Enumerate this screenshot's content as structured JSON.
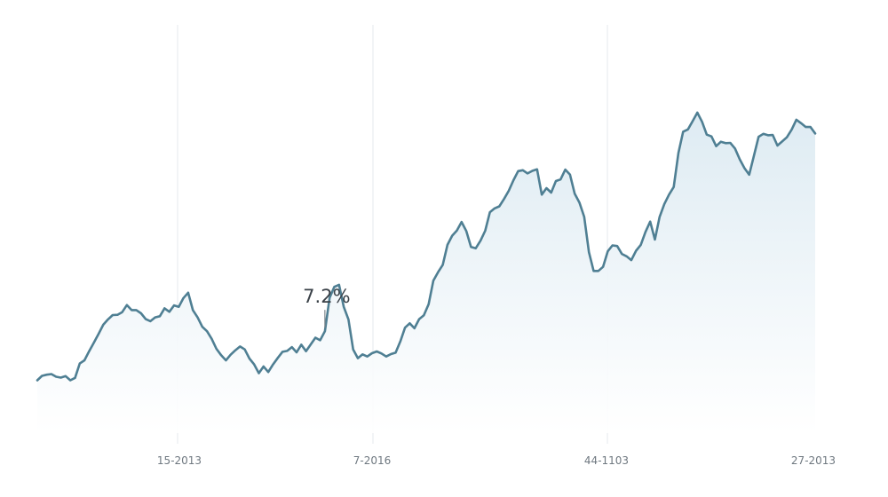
{
  "chart_data": {
    "type": "area",
    "title": "",
    "xlabel": "",
    "ylabel": "",
    "x_tick_labels": [
      "15-2013",
      "7-2016",
      "44-1103",
      "27-2013"
    ],
    "grid": "vertical",
    "legend": "none",
    "colors": {
      "line": "#4f7f93",
      "fill_top": "#dceaf2",
      "fill_bottom": "#ffffff",
      "grid": "#e6e9ec"
    },
    "ylim": [
      0,
      100
    ],
    "annotation": {
      "label": "7.2%",
      "index": 61
    },
    "series": [
      {
        "values": [
          5.6,
          7.1,
          7.5,
          7.7,
          6.8,
          6.5,
          7.0,
          5.6,
          6.4,
          11.3,
          12.4,
          15.5,
          18.4,
          21.4,
          24.5,
          26.3,
          27.8,
          27.9,
          28.8,
          31.2,
          29.5,
          29.5,
          28.4,
          26.4,
          25.7,
          27.0,
          27.4,
          30.1,
          28.9,
          31.1,
          30.6,
          33.6,
          35.4,
          29.5,
          27.0,
          23.8,
          22.3,
          19.7,
          16.3,
          14.1,
          12.4,
          14.3,
          15.8,
          17.1,
          16.1,
          13.0,
          11.0,
          8.0,
          10.3,
          8.4,
          11.0,
          13.2,
          15.3,
          15.6,
          16.9,
          15.1,
          17.7,
          15.5,
          17.8,
          20.1,
          19.2,
          22.3,
          33.7,
          37.4,
          38.1,
          30.6,
          26.3,
          16.1,
          13.1,
          14.4,
          13.7,
          14.8,
          15.4,
          14.7,
          13.7,
          14.5,
          15.0,
          18.8,
          23.5,
          25.0,
          23.3,
          26.4,
          27.7,
          31.5,
          39.5,
          42.4,
          44.9,
          51.7,
          54.8,
          56.6,
          59.5,
          56.4,
          51.0,
          50.5,
          53.1,
          56.5,
          62.8,
          64.1,
          64.8,
          67.3,
          70.1,
          73.7,
          76.8,
          77.1,
          76.0,
          76.9,
          77.4,
          68.8,
          71.0,
          69.5,
          73.4,
          74.0,
          77.3,
          75.6,
          69.1,
          66.1,
          61.2,
          49.2,
          42.8,
          42.8,
          44.2,
          49.5,
          51.5,
          51.3,
          48.6,
          47.8,
          46.5,
          49.7,
          51.7,
          56.1,
          59.6,
          53.5,
          61.2,
          65.6,
          68.8,
          71.4,
          83.0,
          90.2,
          91.0,
          93.8,
          96.7,
          93.6,
          89.2,
          88.6,
          85.3,
          86.8,
          86.3,
          86.4,
          84.5,
          80.8,
          77.8,
          75.6,
          82.0,
          88.5,
          89.5,
          89.0,
          89.1,
          85.5,
          86.9,
          88.3,
          90.9,
          94.3,
          93.1,
          91.8,
          91.8,
          89.6
        ]
      }
    ]
  }
}
